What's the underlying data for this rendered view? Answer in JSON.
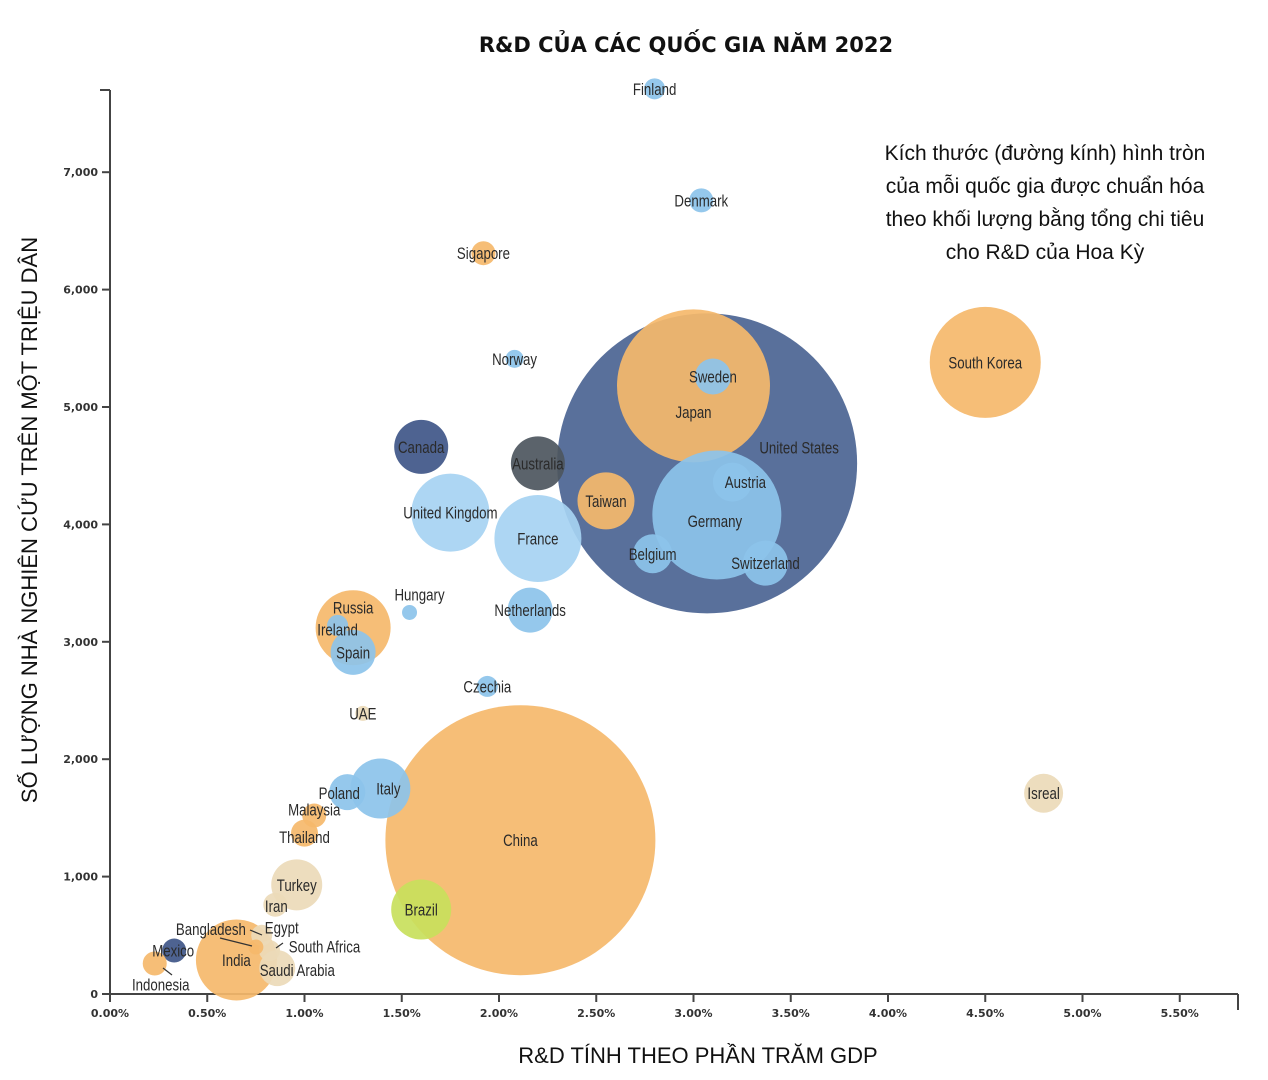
{
  "chart_data": {
    "type": "scatter",
    "subtype": "bubble",
    "title": "R&D CỦA CÁC QUỐC GIA NĂM 2022",
    "xlabel": "R&D TÍNH THEO PHẦN TRĂM GDP",
    "ylabel": "SỐ LƯỢNG NHÀ NGHIÊN CỨU TRÊN MỘT TRIỆU DÂN",
    "xlim": [
      0,
      5.8
    ],
    "ylim": [
      0,
      7700
    ],
    "x_ticks": [
      "0.00%",
      "0.50%",
      "1.00%",
      "1.50%",
      "2.00%",
      "2.50%",
      "3.00%",
      "3.50%",
      "4.00%",
      "4.50%",
      "5.00%",
      "5.50%"
    ],
    "y_ticks": [
      "0",
      "1,000",
      "2,000",
      "3,000",
      "4,000",
      "5,000",
      "6,000",
      "7,000"
    ],
    "grid": false,
    "annotation": [
      "Kích thước (đường kính) hình tròn",
      "của mỗi quốc gia được chuẩn hóa",
      "theo khối lượng bằng tổng chi tiêu",
      "cho R&D của Hoa Kỳ"
    ],
    "colors": {
      "orange": "#f5b96b",
      "blue": "#8cc3ea",
      "lightblue": "#a6d2f2",
      "darkblue": "#4b6492",
      "navy": "#3f5688",
      "gray": "#4d565e",
      "beige": "#ecdab8",
      "green": "#c8e05c"
    },
    "points": [
      {
        "name": "United States",
        "x": 3.07,
        "y": 4520,
        "size": 1.0,
        "color": "darkblue"
      },
      {
        "name": "China",
        "x": 2.11,
        "y": 1310,
        "size": 0.9,
        "color": "orange"
      },
      {
        "name": "Japan",
        "x": 3.0,
        "y": 5180,
        "size": 0.51,
        "color": "orange"
      },
      {
        "name": "Germany",
        "x": 3.12,
        "y": 4080,
        "size": 0.43,
        "color": "blue"
      },
      {
        "name": "South Korea",
        "x": 4.5,
        "y": 5380,
        "size": 0.37,
        "color": "orange"
      },
      {
        "name": "France",
        "x": 2.2,
        "y": 3880,
        "size": 0.29,
        "color": "lightblue"
      },
      {
        "name": "India",
        "x": 0.65,
        "y": 290,
        "size": 0.27,
        "color": "orange"
      },
      {
        "name": "United Kingdom",
        "x": 1.75,
        "y": 4100,
        "size": 0.26,
        "color": "lightblue"
      },
      {
        "name": "Russia",
        "x": 1.25,
        "y": 3120,
        "size": 0.25,
        "color": "orange"
      },
      {
        "name": "Italy",
        "x": 1.39,
        "y": 1750,
        "size": 0.2,
        "color": "blue"
      },
      {
        "name": "Brazil",
        "x": 1.6,
        "y": 720,
        "size": 0.2,
        "color": "green"
      },
      {
        "name": "Taiwan",
        "x": 2.55,
        "y": 4200,
        "size": 0.19,
        "color": "orange"
      },
      {
        "name": "Canada",
        "x": 1.6,
        "y": 4660,
        "size": 0.18,
        "color": "navy"
      },
      {
        "name": "Australia",
        "x": 2.2,
        "y": 4520,
        "size": 0.18,
        "color": "gray"
      },
      {
        "name": "Turkey",
        "x": 0.96,
        "y": 930,
        "size": 0.17,
        "color": "beige"
      },
      {
        "name": "Spain",
        "x": 1.25,
        "y": 2910,
        "size": 0.15,
        "color": "blue"
      },
      {
        "name": "Netherlands",
        "x": 2.16,
        "y": 3270,
        "size": 0.15,
        "color": "blue"
      },
      {
        "name": "Switzerland",
        "x": 3.37,
        "y": 3670,
        "size": 0.15,
        "color": "blue"
      },
      {
        "name": "Belgium",
        "x": 2.79,
        "y": 3750,
        "size": 0.13,
        "color": "blue"
      },
      {
        "name": "Austria",
        "x": 3.2,
        "y": 4360,
        "size": 0.13,
        "color": "blue"
      },
      {
        "name": "Isreal",
        "x": 4.8,
        "y": 1710,
        "size": 0.13,
        "color": "beige"
      },
      {
        "name": "Sweden",
        "x": 3.1,
        "y": 5260,
        "size": 0.12,
        "color": "blue"
      },
      {
        "name": "Poland",
        "x": 1.22,
        "y": 1720,
        "size": 0.12,
        "color": "blue"
      },
      {
        "name": "Saudi Arabia",
        "x": 0.86,
        "y": 220,
        "size": 0.12,
        "color": "beige"
      },
      {
        "name": "Thailand",
        "x": 1.0,
        "y": 1370,
        "size": 0.09,
        "color": "orange"
      },
      {
        "name": "Iran",
        "x": 0.85,
        "y": 760,
        "size": 0.08,
        "color": "beige"
      },
      {
        "name": "Denmark",
        "x": 3.04,
        "y": 6760,
        "size": 0.08,
        "color": "blue"
      },
      {
        "name": "Sigapore",
        "x": 1.92,
        "y": 6310,
        "size": 0.08,
        "color": "orange"
      },
      {
        "name": "Mexico",
        "x": 0.33,
        "y": 370,
        "size": 0.08,
        "color": "navy"
      },
      {
        "name": "Indonesia",
        "x": 0.23,
        "y": 260,
        "size": 0.08,
        "color": "orange"
      },
      {
        "name": "Malaysia",
        "x": 1.05,
        "y": 1520,
        "size": 0.08,
        "color": "orange"
      },
      {
        "name": "Ireland",
        "x": 1.17,
        "y": 3140,
        "size": 0.07,
        "color": "blue"
      },
      {
        "name": "Finland",
        "x": 2.8,
        "y": 7710,
        "size": 0.07,
        "color": "blue"
      },
      {
        "name": "Czechia",
        "x": 1.94,
        "y": 2620,
        "size": 0.07,
        "color": "blue"
      },
      {
        "name": "Egypt",
        "x": 0.78,
        "y": 500,
        "size": 0.07,
        "color": "beige"
      },
      {
        "name": "South Africa",
        "x": 0.82,
        "y": 370,
        "size": 0.07,
        "color": "beige"
      },
      {
        "name": "Norway",
        "x": 2.08,
        "y": 5410,
        "size": 0.06,
        "color": "blue"
      },
      {
        "name": "Bangladesh",
        "x": 0.75,
        "y": 400,
        "size": 0.05,
        "color": "orange"
      },
      {
        "name": "UAE",
        "x": 1.3,
        "y": 2390,
        "size": 0.05,
        "color": "beige"
      },
      {
        "name": "Hungary",
        "x": 1.54,
        "y": 3250,
        "size": 0.05,
        "color": "blue"
      }
    ]
  }
}
